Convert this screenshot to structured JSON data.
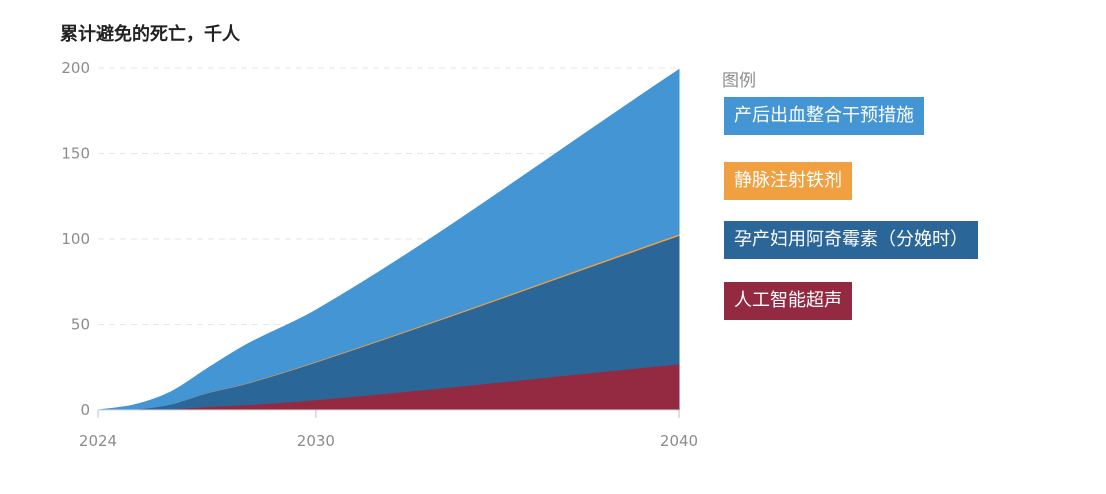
{
  "chart_data": {
    "type": "area",
    "title": "累计避免的死亡，千人",
    "xlabel": "",
    "ylabel": "",
    "x": [
      2024,
      2025,
      2026,
      2027,
      2028,
      2030,
      2040
    ],
    "x_ticks": [
      "2024",
      "2030",
      "2040"
    ],
    "y_ticks": [
      "0",
      "50",
      "100",
      "150",
      "200"
    ],
    "ylim": [
      0,
      200
    ],
    "xlim": [
      2024,
      2040
    ],
    "stacked": true,
    "grid": true,
    "legend_title": "图例",
    "legend_position": "right",
    "series": [
      {
        "name": "人工智能超声",
        "color": "#932a41",
        "values": [
          0,
          0,
          0.5,
          2,
          3,
          6,
          27
        ]
      },
      {
        "name": "孕产妇用阿奇霉素（分娩时）",
        "color": "#2b6699",
        "values": [
          0,
          0.5,
          3,
          8,
          12,
          22,
          75
        ]
      },
      {
        "name": "静脉注射铁剂",
        "color": "#f0a041",
        "values": [
          0,
          0,
          0,
          0.1,
          0.2,
          0.4,
          1
        ]
      },
      {
        "name": "产后出血整合干预措施",
        "color": "#4495d3",
        "values": [
          0,
          2.5,
          7,
          14,
          22,
          30,
          96
        ]
      }
    ]
  },
  "legend": {
    "title": "图例",
    "items": [
      {
        "label": "产后出血整合干预措施",
        "color": "#4495d3"
      },
      {
        "label": "静脉注射铁剂",
        "color": "#f0a041"
      },
      {
        "label": "孕产妇用阿奇霉素（分娩时）",
        "color": "#2b6699"
      },
      {
        "label": "人工智能超声",
        "color": "#932a41"
      }
    ]
  }
}
